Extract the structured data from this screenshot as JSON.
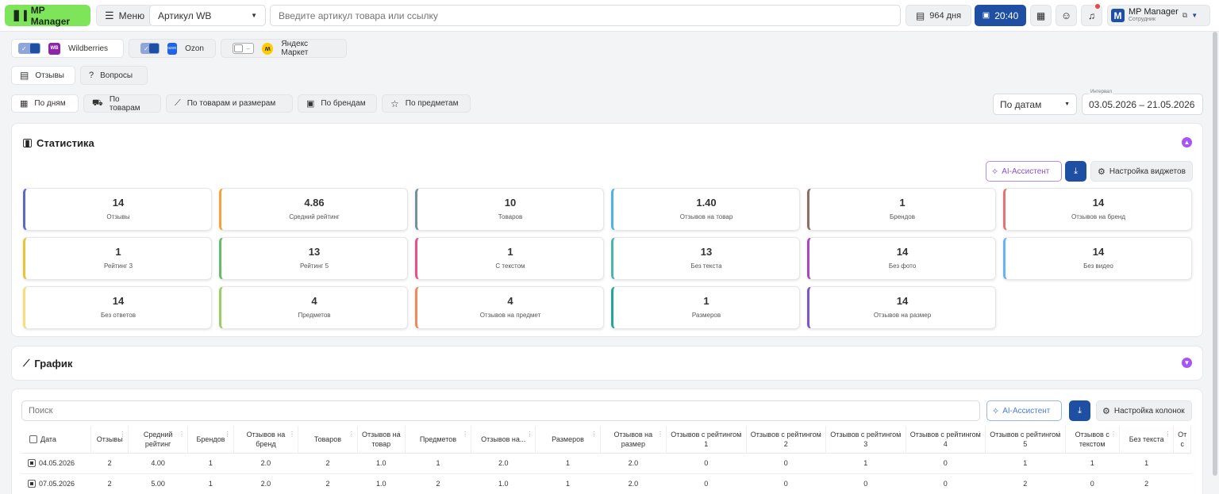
{
  "topbar": {
    "logo": "MP Manager",
    "menu": "Меню",
    "article_select": "Артикул WB",
    "search_placeholder": "Введите артикул товара или ссылку",
    "days": "964 дня",
    "time": "20:40",
    "user_name": "MP Manager",
    "user_role": "Сотрудник",
    "avatar_letter": "M"
  },
  "marketplaces": [
    {
      "label": "Wildberries",
      "badge": "WB",
      "on": true
    },
    {
      "label": "Ozon",
      "badge": "ozon",
      "on": true
    },
    {
      "label": "Яндекс Маркет",
      "badge": "",
      "on": false
    }
  ],
  "type_tabs": [
    "Отзывы",
    "Вопросы"
  ],
  "group_tabs": [
    "По дням",
    "По товарам",
    "По товарам и размерам",
    "По брендам",
    "По предметам"
  ],
  "date_mode": "По датам",
  "interval_label": "Интервал",
  "interval_value": "03.05.2026 – 21.05.2026",
  "stats_title": "Статистика",
  "ai_assistant": "AI-Ассистент",
  "widget_settings": "Настройка виджетов",
  "stats": [
    {
      "value": "14",
      "label": "Отзывы",
      "color": "#5c6bc0"
    },
    {
      "value": "4.86",
      "label": "Средний рейтинг",
      "color": "#f0a43a"
    },
    {
      "value": "10",
      "label": "Товаров",
      "color": "#78909c"
    },
    {
      "value": "1.40",
      "label": "Отзывов на товар",
      "color": "#4fb3e8"
    },
    {
      "value": "1",
      "label": "Брендов",
      "color": "#8d6e63"
    },
    {
      "value": "14",
      "label": "Отзывов на бренд",
      "color": "#e57373"
    },
    {
      "value": "1",
      "label": "Рейтинг 3",
      "color": "#e5c53a"
    },
    {
      "value": "13",
      "label": "Рейтинг 5",
      "color": "#66bb6a"
    },
    {
      "value": "1",
      "label": "С текстом",
      "color": "#e84f8c"
    },
    {
      "value": "13",
      "label": "Без текста",
      "color": "#4db6ac"
    },
    {
      "value": "14",
      "label": "Без фото",
      "color": "#ab47bc"
    },
    {
      "value": "14",
      "label": "Без видео",
      "color": "#64b5f6"
    },
    {
      "value": "14",
      "label": "Без ответов",
      "color": "#f6df7a"
    },
    {
      "value": "4",
      "label": "Предметов",
      "color": "#9ccc65"
    },
    {
      "value": "4",
      "label": "Отзывов на предмет",
      "color": "#ef8a5a"
    },
    {
      "value": "1",
      "label": "Размеров",
      "color": "#26a69a"
    },
    {
      "value": "14",
      "label": "Отзывов на размер",
      "color": "#7e57c2"
    }
  ],
  "chart_title": "График",
  "table": {
    "search_placeholder": "Поиск",
    "ai_assistant": "AI-Ассистент",
    "column_settings": "Настройка колонок",
    "headers": [
      "Дата",
      "Отзывы",
      "Средний рейтинг",
      "Брендов",
      "Отзывов на бренд",
      "Товаров",
      "Отзывов на товар",
      "Предметов",
      "Отзывов на...",
      "Размеров",
      "Отзывов на размер",
      "Отзывов с рейтингом 1",
      "Отзывов с рейтингом 2",
      "Отзывов с рейтингом 3",
      "Отзывов с рейтингом 4",
      "Отзывов с рейтингом 5",
      "Отзывов с текстом",
      "Без текста",
      "От с"
    ],
    "rows": [
      [
        "04.05.2026",
        "2",
        "4.00",
        "1",
        "2.0",
        "2",
        "1.0",
        "1",
        "2.0",
        "1",
        "2.0",
        "0",
        "0",
        "1",
        "0",
        "1",
        "1",
        "1",
        ""
      ],
      [
        "07.05.2026",
        "2",
        "5.00",
        "1",
        "2.0",
        "2",
        "1.0",
        "2",
        "1.0",
        "1",
        "2.0",
        "0",
        "0",
        "0",
        "0",
        "2",
        "0",
        "2",
        ""
      ]
    ]
  }
}
